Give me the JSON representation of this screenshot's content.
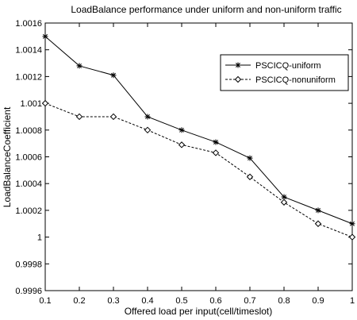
{
  "chart_data": {
    "type": "line",
    "title": "LoadBalance performance under uniform and non-uniform traffic",
    "xlabel": "Offered load per input(cell/timeslot)",
    "ylabel": "LoadBalanceCoefficient",
    "xlim": [
      0.1,
      1
    ],
    "ylim": [
      0.9996,
      1.0016
    ],
    "xticks": [
      "0.1",
      "0.2",
      "0.3",
      "0.4",
      "0.5",
      "0.6",
      "0.7",
      "0.8",
      "0.9",
      "1"
    ],
    "yticks": [
      "0.9996",
      "0.9998",
      "1",
      "1.0002",
      "1.0004",
      "1.0006",
      "1.0008",
      "1.001",
      "1.0012",
      "1.0014",
      "1.0016"
    ],
    "grid": false,
    "legend_position": "upper-right",
    "x": [
      0.1,
      0.2,
      0.3,
      0.4,
      0.5,
      0.6,
      0.7,
      0.8,
      0.9,
      1.0
    ],
    "series": [
      {
        "name": "PSCICQ-uniform",
        "marker": "star",
        "line_style": "solid",
        "color": "#000000",
        "values": [
          1.0015,
          1.00128,
          1.00121,
          1.0009,
          1.0008,
          1.00071,
          1.00059,
          1.0003,
          1.0002,
          1.0001
        ]
      },
      {
        "name": "PSCICQ-nonuniform",
        "marker": "diamond",
        "line_style": "dashed",
        "color": "#000000",
        "values": [
          1.001,
          1.0009,
          1.0009,
          1.0008,
          1.00069,
          1.00063,
          1.00045,
          1.00026,
          1.0001,
          1.0
        ]
      }
    ]
  }
}
